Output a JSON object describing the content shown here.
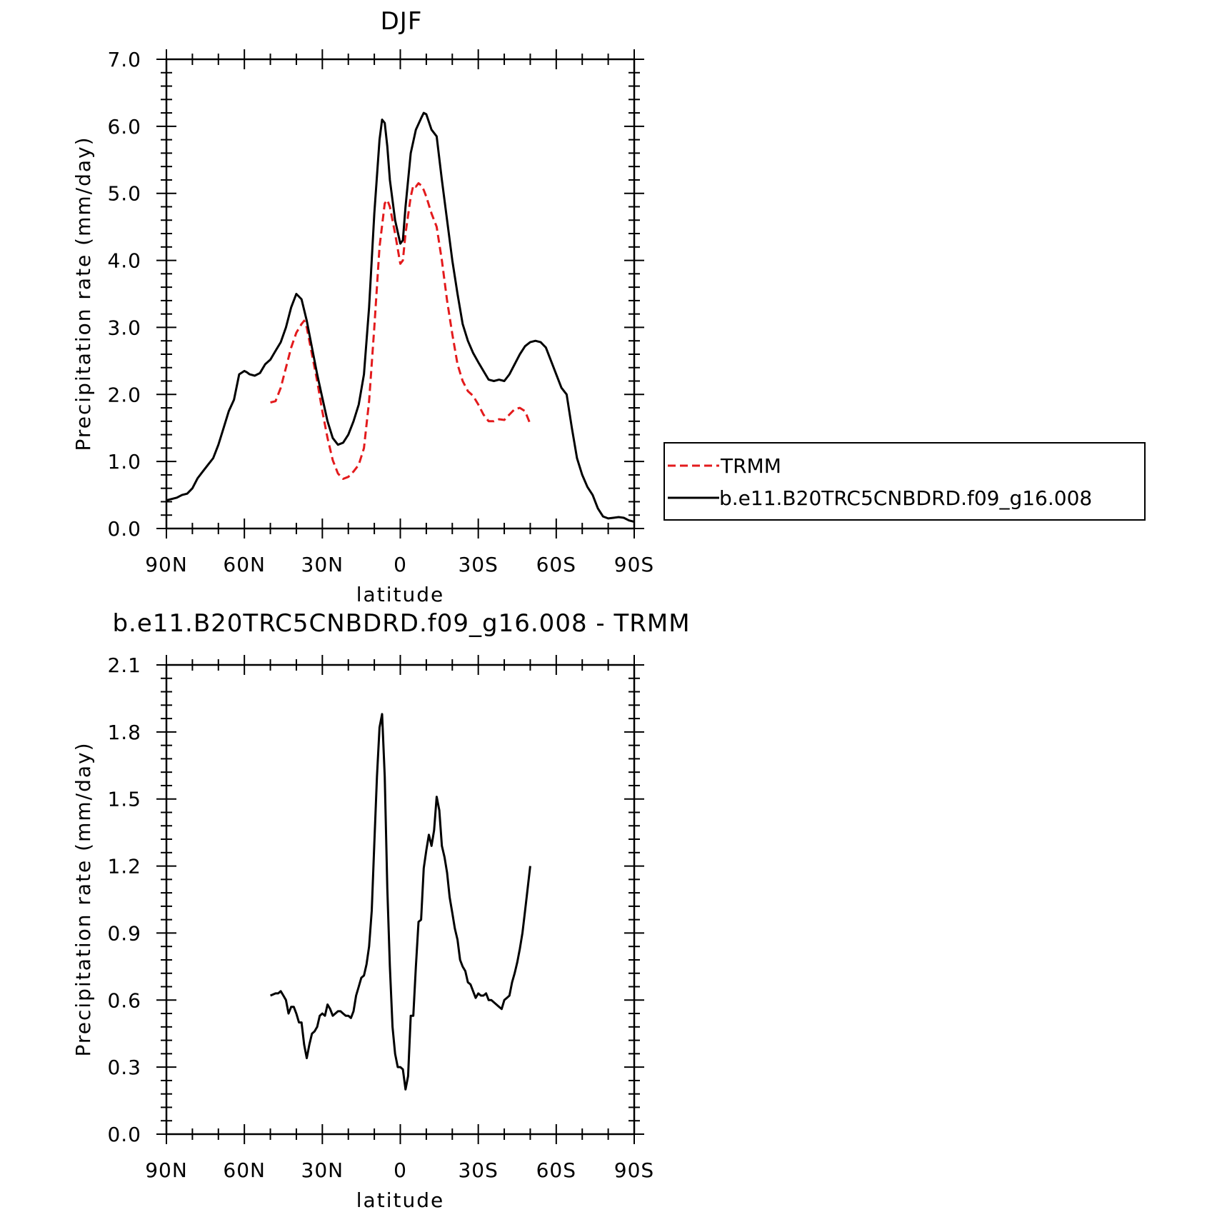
{
  "chart_data": [
    {
      "type": "line",
      "title": "DJF",
      "xlabel": "latitude",
      "ylabel": "Precipitation rate (mm/day)",
      "xlim": [
        -90,
        90
      ],
      "ylim": [
        0.0,
        7.0
      ],
      "x_direction": "north-to-south",
      "x_ticks": [
        -90,
        -60,
        -30,
        0,
        30,
        60,
        90
      ],
      "x_tick_labels": [
        "90N",
        "60N",
        "30N",
        "0",
        "30S",
        "60S",
        "90S"
      ],
      "y_ticks": [
        0.0,
        1.0,
        2.0,
        3.0,
        4.0,
        5.0,
        6.0,
        7.0
      ],
      "y_tick_labels": [
        "0.0",
        "1.0",
        "2.0",
        "3.0",
        "4.0",
        "5.0",
        "6.0",
        "7.0"
      ],
      "legend": {
        "placement": "right"
      },
      "series": [
        {
          "name": "TRMM",
          "color": "#e31a1c",
          "style": "dashed",
          "x": [
            -50,
            -48,
            -46,
            -44,
            -42,
            -40,
            -38,
            -37,
            -36,
            -34,
            -32,
            -30,
            -28,
            -26,
            -24,
            -22,
            -20,
            -18,
            -16,
            -14,
            -12,
            -10,
            -8,
            -6,
            -5,
            -4,
            -2,
            0,
            1,
            2,
            4,
            5,
            6,
            7,
            8,
            9,
            10,
            12,
            14,
            16,
            18,
            20,
            22,
            24,
            26,
            28,
            30,
            32,
            34,
            36,
            38,
            40,
            42,
            44,
            46,
            48,
            50
          ],
          "values": [
            1.88,
            1.9,
            2.1,
            2.4,
            2.7,
            2.92,
            3.05,
            3.1,
            3.0,
            2.6,
            2.2,
            1.75,
            1.35,
            1.02,
            0.82,
            0.74,
            0.77,
            0.85,
            0.95,
            1.2,
            1.9,
            3.0,
            4.2,
            4.85,
            4.9,
            4.8,
            4.4,
            3.95,
            4.0,
            4.4,
            4.95,
            5.12,
            5.1,
            5.15,
            5.12,
            5.05,
            4.95,
            4.7,
            4.5,
            4.0,
            3.4,
            2.9,
            2.45,
            2.2,
            2.05,
            1.98,
            1.85,
            1.7,
            1.6,
            1.6,
            1.63,
            1.62,
            1.7,
            1.78,
            1.8,
            1.75,
            1.56
          ]
        },
        {
          "name": "b.e11.B20TRC5CNBDRD.f09_g16.008",
          "color": "#000000",
          "style": "solid",
          "x": [
            -90,
            -88,
            -86,
            -84,
            -82,
            -80,
            -78,
            -76,
            -74,
            -72,
            -70,
            -68,
            -66,
            -64,
            -62,
            -60,
            -59,
            -58,
            -56,
            -54,
            -52,
            -50,
            -48,
            -46,
            -44,
            -42,
            -40,
            -38,
            -36,
            -34,
            -32,
            -30,
            -28,
            -26,
            -24,
            -22,
            -20,
            -18,
            -16,
            -14,
            -12,
            -10,
            -8,
            -7,
            -6,
            -5,
            -4,
            -2,
            0,
            1,
            2,
            4,
            6,
            8,
            9,
            10,
            12,
            14,
            16,
            18,
            20,
            22,
            24,
            26,
            28,
            30,
            32,
            34,
            36,
            38,
            40,
            42,
            44,
            46,
            48,
            50,
            52,
            54,
            56,
            58,
            60,
            62,
            64,
            66,
            68,
            70,
            72,
            74,
            76,
            78,
            80,
            82,
            84,
            86,
            88,
            90
          ],
          "values": [
            0.42,
            0.44,
            0.46,
            0.5,
            0.52,
            0.6,
            0.75,
            0.85,
            0.95,
            1.05,
            1.25,
            1.5,
            1.75,
            1.92,
            2.3,
            2.35,
            2.33,
            2.3,
            2.28,
            2.32,
            2.45,
            2.52,
            2.65,
            2.78,
            3.0,
            3.3,
            3.5,
            3.42,
            3.1,
            2.7,
            2.3,
            1.95,
            1.6,
            1.35,
            1.25,
            1.28,
            1.4,
            1.6,
            1.85,
            2.3,
            3.3,
            4.7,
            5.8,
            6.1,
            6.05,
            5.7,
            5.2,
            4.6,
            4.25,
            4.3,
            4.8,
            5.6,
            5.95,
            6.12,
            6.2,
            6.18,
            5.95,
            5.85,
            5.2,
            4.6,
            4.0,
            3.5,
            3.05,
            2.8,
            2.62,
            2.48,
            2.35,
            2.22,
            2.2,
            2.22,
            2.2,
            2.3,
            2.45,
            2.6,
            2.72,
            2.78,
            2.8,
            2.78,
            2.7,
            2.5,
            2.3,
            2.1,
            2.0,
            1.5,
            1.05,
            0.8,
            0.62,
            0.5,
            0.3,
            0.18,
            0.15,
            0.16,
            0.17,
            0.16,
            0.12,
            0.1
          ]
        }
      ]
    },
    {
      "type": "line",
      "title": "b.e11.B20TRC5CNBDRD.f09_g16.008 - TRMM",
      "xlabel": "latitude",
      "ylabel": "Precipitation rate (mm/day)",
      "xlim": [
        -90,
        90
      ],
      "ylim": [
        0.0,
        2.1
      ],
      "x_direction": "north-to-south",
      "x_ticks": [
        -90,
        -60,
        -30,
        0,
        30,
        60,
        90
      ],
      "x_tick_labels": [
        "90N",
        "60N",
        "30N",
        "0",
        "30S",
        "60S",
        "90S"
      ],
      "y_ticks": [
        0.0,
        0.3,
        0.6,
        0.9,
        1.2,
        1.5,
        1.8,
        2.1
      ],
      "y_tick_labels": [
        "0.0",
        "0.3",
        "0.6",
        "0.9",
        "1.2",
        "1.5",
        "1.8",
        "2.1"
      ],
      "series": [
        {
          "color": "#000000",
          "style": "solid",
          "x": [
            -50,
            -48,
            -47,
            -46,
            -45,
            -44,
            -43,
            -42,
            -41,
            -40,
            -39,
            -38,
            -37,
            -36,
            -35,
            -34,
            -33,
            -32,
            -31,
            -30,
            -29,
            -28,
            -27,
            -26,
            -25,
            -24,
            -23,
            -22,
            -21,
            -20,
            -19,
            -18,
            -17,
            -16,
            -15,
            -14,
            -13,
            -12,
            -11,
            -10,
            -9,
            -8,
            -7,
            -6,
            -5,
            -4,
            -3,
            -2,
            -1,
            0,
            1,
            2,
            3,
            4,
            5,
            6,
            7,
            8,
            9,
            10,
            11,
            12,
            13,
            14,
            15,
            16,
            17,
            18,
            19,
            20,
            21,
            22,
            23,
            24,
            25,
            26,
            27,
            28,
            29,
            30,
            31,
            32,
            33,
            34,
            35,
            36,
            37,
            38,
            39,
            40,
            41,
            42,
            43,
            44,
            45,
            46,
            47,
            48,
            49,
            50
          ],
          "values": [
            0.62,
            0.63,
            0.63,
            0.64,
            0.62,
            0.6,
            0.54,
            0.57,
            0.57,
            0.54,
            0.5,
            0.5,
            0.4,
            0.34,
            0.4,
            0.45,
            0.46,
            0.48,
            0.53,
            0.54,
            0.53,
            0.58,
            0.56,
            0.53,
            0.54,
            0.55,
            0.55,
            0.54,
            0.53,
            0.53,
            0.52,
            0.55,
            0.62,
            0.66,
            0.7,
            0.71,
            0.76,
            0.84,
            1.0,
            1.3,
            1.6,
            1.82,
            1.88,
            1.6,
            1.1,
            0.75,
            0.48,
            0.36,
            0.3,
            0.3,
            0.29,
            0.2,
            0.26,
            0.53,
            0.53,
            0.75,
            0.95,
            0.96,
            1.19,
            1.27,
            1.34,
            1.29,
            1.36,
            1.51,
            1.45,
            1.29,
            1.24,
            1.17,
            1.06,
            0.99,
            0.92,
            0.87,
            0.78,
            0.75,
            0.73,
            0.68,
            0.67,
            0.64,
            0.61,
            0.63,
            0.62,
            0.62,
            0.63,
            0.6,
            0.6,
            0.59,
            0.58,
            0.57,
            0.56,
            0.6,
            0.61,
            0.62,
            0.68,
            0.72,
            0.77,
            0.83,
            0.9,
            1.0,
            1.1,
            1.2
          ]
        }
      ]
    }
  ]
}
